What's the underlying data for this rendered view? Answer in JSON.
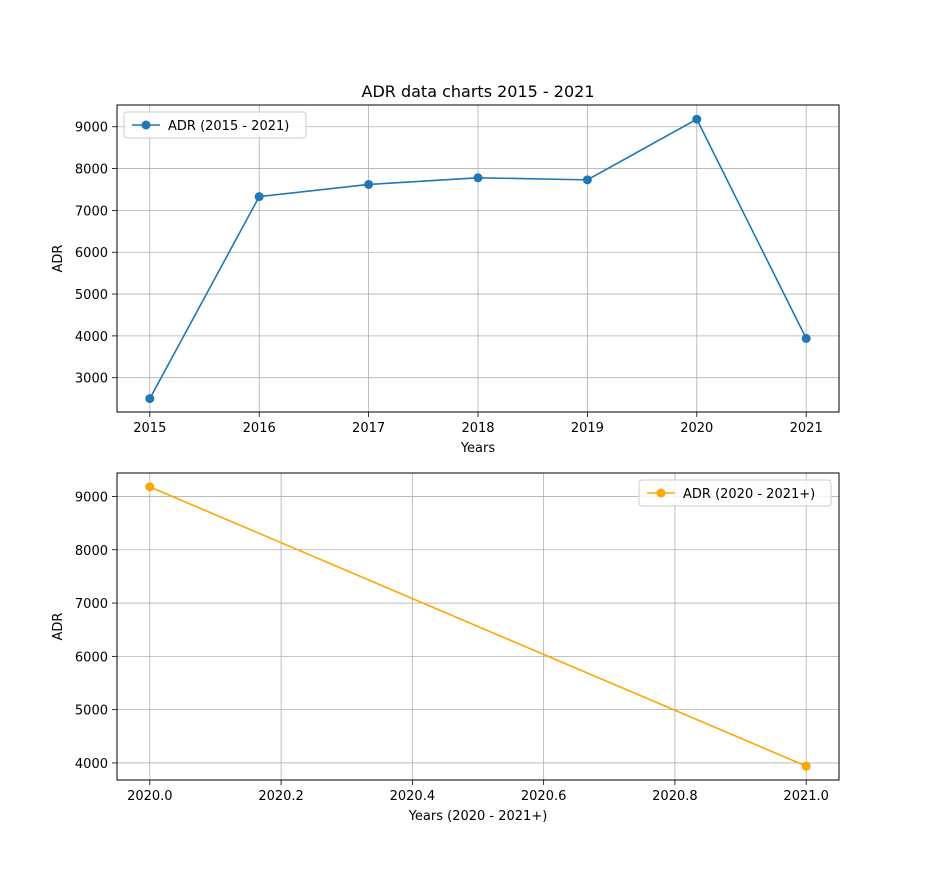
{
  "chart_data": [
    {
      "type": "line",
      "title": "ADR data charts 2015 - 2021",
      "xlabel": "Years",
      "ylabel": "ADR",
      "xlim": [
        2014.7,
        2021.3
      ],
      "ylim": [
        2180,
        9520
      ],
      "xticks": [
        2015,
        2016,
        2017,
        2018,
        2019,
        2020,
        2021
      ],
      "xtick_labels": [
        "2015",
        "2016",
        "2017",
        "2018",
        "2019",
        "2020",
        "2021"
      ],
      "yticks": [
        3000,
        4000,
        5000,
        6000,
        7000,
        8000,
        9000
      ],
      "ytick_labels": [
        "3000",
        "4000",
        "5000",
        "6000",
        "7000",
        "8000",
        "9000"
      ],
      "grid": true,
      "legend_position": "upper-left",
      "series": [
        {
          "name": "ADR (2015 - 2021)",
          "color": "#1f77b4",
          "marker": "circle",
          "x": [
            2015,
            2016,
            2017,
            2018,
            2019,
            2020,
            2021
          ],
          "y": [
            2500,
            7330,
            7620,
            7780,
            7730,
            9180,
            3940
          ]
        }
      ]
    },
    {
      "type": "line",
      "title": "",
      "xlabel": "Years (2020 - 2021+)",
      "ylabel": "ADR",
      "xlim": [
        1969.95,
        2021.05
      ],
      "ylim": [
        3680,
        9440
      ],
      "xticks": [
        2020.0,
        2020.2,
        2020.4,
        2020.6,
        2020.8,
        2021.0
      ],
      "xtick_labels": [
        "2020.0",
        "2020.2",
        "2020.4",
        "2020.6",
        "2020.8",
        "2021.0"
      ],
      "yticks": [
        4000,
        5000,
        6000,
        7000,
        8000,
        9000
      ],
      "ytick_labels": [
        "4000",
        "5000",
        "6000",
        "7000",
        "8000",
        "9000"
      ],
      "grid": true,
      "legend_position": "upper-right",
      "series": [
        {
          "name": "ADR (2020 - 2021+)",
          "color": "#ffa500",
          "marker": "circle",
          "x": [
            2020.0,
            2021.0
          ],
          "y": [
            9180,
            3940
          ]
        }
      ]
    }
  ]
}
